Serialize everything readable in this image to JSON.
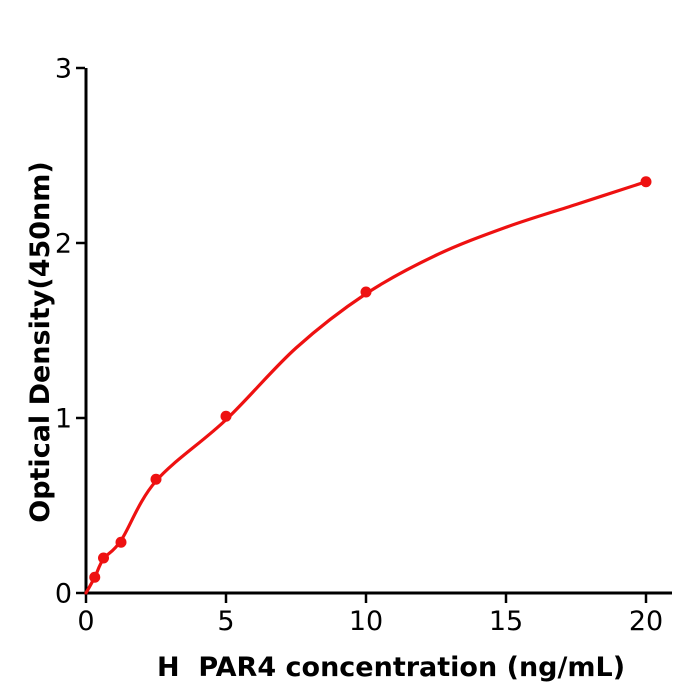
{
  "figure": {
    "background": "#ffffff"
  },
  "chart_data": {
    "type": "scatter",
    "title": "",
    "xlabel": "H  PAR4 concentration (ng/mL)",
    "ylabel": "Optical Density(450nm)",
    "xlim": [
      0,
      20.9
    ],
    "ylim": [
      0,
      3
    ],
    "xticks": [
      0,
      5,
      10,
      15,
      20
    ],
    "yticks": [
      0,
      1,
      2,
      3
    ],
    "grid": false,
    "legend": "none",
    "axis_color": "#000000",
    "point_color": "#ee1111",
    "line_color": "#ee1111",
    "series": [
      {
        "name": "points",
        "type": "scatter",
        "x": [
          0.3125,
          0.625,
          1.25,
          2.5,
          5,
          10,
          20
        ],
        "y": [
          0.09,
          0.2,
          0.29,
          0.65,
          1.01,
          1.72,
          2.35
        ]
      },
      {
        "name": "fit_line",
        "type": "line",
        "x": [
          0,
          0.3125,
          0.625,
          1.25,
          2.5,
          5,
          7.5,
          10,
          12.5,
          15,
          17.5,
          20
        ],
        "y": [
          0,
          0.09,
          0.195,
          0.3,
          0.64,
          0.99,
          1.4,
          1.71,
          1.93,
          2.09,
          2.22,
          2.35
        ]
      }
    ]
  }
}
